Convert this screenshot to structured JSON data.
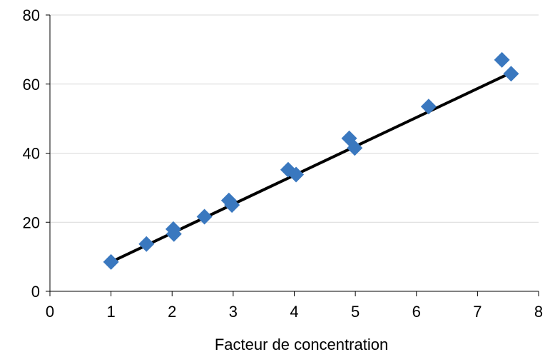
{
  "chart_data": {
    "type": "scatter",
    "title": "",
    "xlabel": "Facteur de concentration",
    "ylabel": "",
    "xlim": [
      0,
      8
    ],
    "ylim": [
      0,
      80
    ],
    "xticks": [
      "0",
      "1",
      "2",
      "3",
      "4",
      "5",
      "6",
      "7",
      "8"
    ],
    "yticks": [
      "0",
      "20",
      "40",
      "60",
      "80"
    ],
    "grid": "horizontal",
    "legend": "none",
    "series": [
      {
        "marker": "diamond",
        "color": "#3a78bf",
        "points": [
          {
            "x": 1.0,
            "y": 8.5
          },
          {
            "x": 1.58,
            "y": 13.7
          },
          {
            "x": 2.02,
            "y": 18.0
          },
          {
            "x": 2.03,
            "y": 16.6
          },
          {
            "x": 2.53,
            "y": 21.6
          },
          {
            "x": 2.93,
            "y": 26.3
          },
          {
            "x": 2.98,
            "y": 25.0
          },
          {
            "x": 3.9,
            "y": 35.2
          },
          {
            "x": 4.03,
            "y": 33.8
          },
          {
            "x": 4.9,
            "y": 44.3
          },
          {
            "x": 4.99,
            "y": 41.5
          },
          {
            "x": 6.2,
            "y": 53.5
          },
          {
            "x": 7.4,
            "y": 67.0
          },
          {
            "x": 7.55,
            "y": 63.0
          }
        ]
      }
    ],
    "trendline": {
      "color": "#000000",
      "points": [
        {
          "x": 1.0,
          "y": 8.5
        },
        {
          "x": 7.55,
          "y": 63.3
        }
      ]
    }
  }
}
